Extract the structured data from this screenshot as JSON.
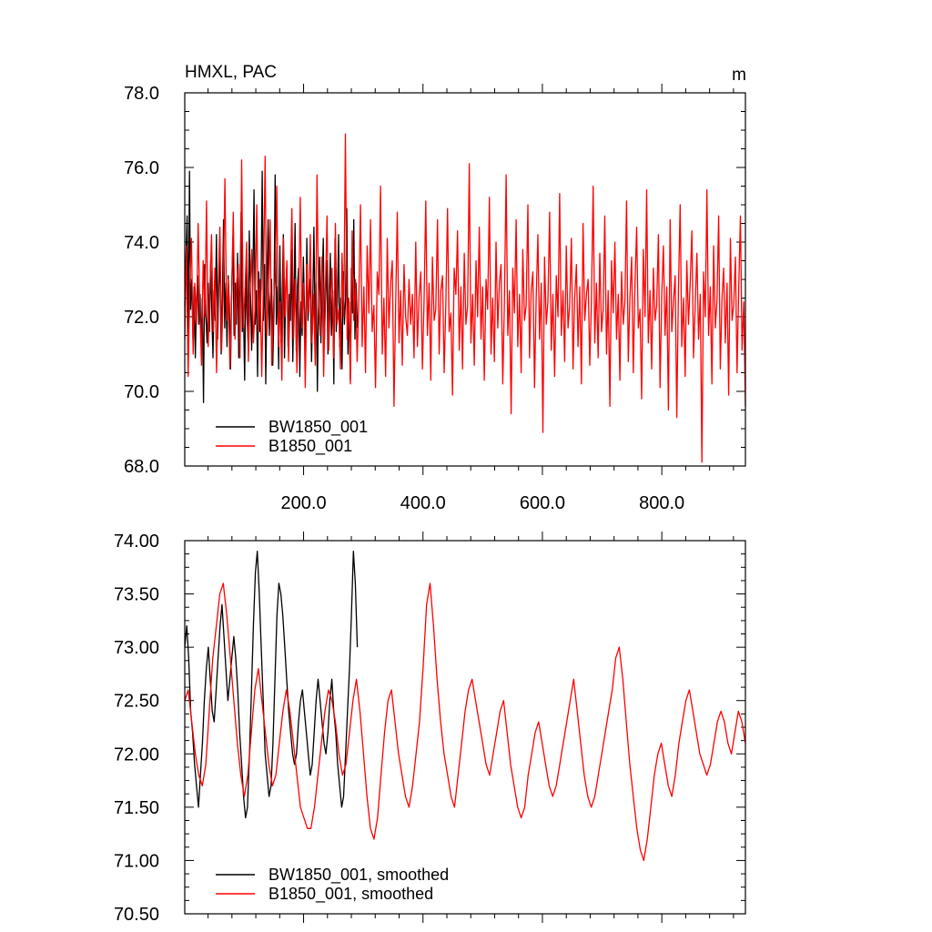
{
  "chart_data": [
    {
      "type": "line",
      "title": "HMXL, PAC",
      "units": "m",
      "xlim": [
        1,
        940
      ],
      "ylim": [
        68.0,
        78.0
      ],
      "xticks": [
        200,
        400,
        600,
        800
      ],
      "xtick_labels": [
        "200.0",
        "400.0",
        "600.0",
        "800.0"
      ],
      "yticks": [
        68,
        70,
        72,
        74,
        76,
        78
      ],
      "ytick_labels": [
        "68.0",
        "70.0",
        "72.0",
        "74.0",
        "76.0",
        "78.0"
      ],
      "legend_position": "bottom-left",
      "series": [
        {
          "name": "BW1850_001",
          "color": "#000000",
          "x_start": 1,
          "values": [
            72.3,
            73.6,
            74.7,
            71.5,
            75.9,
            72.2,
            73.0,
            71.4,
            72.8,
            70.9,
            72.4,
            73.1,
            71.8,
            72.6,
            71.2,
            72.5,
            69.7,
            73.4,
            72.0,
            71.3,
            72.9,
            71.6,
            73.5,
            72.1,
            70.9,
            72.7,
            71.9,
            74.2,
            71.4,
            72.8,
            73.6,
            71.0,
            72.4,
            74.6,
            71.7,
            72.9,
            71.2,
            73.1,
            72.3,
            70.6,
            72.8,
            74.1,
            71.5,
            72.9,
            71.8,
            73.7,
            70.9,
            72.5,
            74.8,
            71.6,
            72.2,
            70.3,
            73.3,
            72.0,
            71.3,
            74.3,
            72.6,
            71.1,
            72.9,
            75.4,
            71.8,
            72.7,
            70.4,
            73.2,
            71.6,
            72.8,
            75.9,
            71.9,
            73.4,
            70.2,
            72.7,
            74.6,
            71.5,
            72.4,
            73.0,
            70.7,
            72.2,
            75.8,
            71.8,
            72.8,
            70.6,
            73.9,
            71.3,
            72.5,
            74.2,
            70.9,
            72.7,
            73.4,
            71.2,
            72.6,
            71.9,
            73.8,
            70.8,
            72.3,
            74.5,
            71.1,
            72.8,
            73.3,
            70.4,
            72.4,
            71.5,
            73.6,
            72.2,
            70.7,
            74.1,
            71.9,
            72.6,
            73.0,
            70.8,
            72.3,
            74.4,
            71.7,
            72.9,
            70.0,
            72.5,
            73.6,
            71.3,
            72.8,
            74.1,
            71.4,
            72.6,
            73.5,
            71.0,
            72.2,
            73.7,
            71.5,
            72.7,
            70.2,
            74.1,
            71.6,
            72.4,
            74.2,
            71.2,
            72.5,
            70.6,
            73.2,
            71.8,
            72.5,
            74.9,
            71.0,
            72.4,
            70.3,
            73.3,
            72.1,
            74.6,
            71.4,
            72.9,
            71.7
          ]
        },
        {
          "name": "B1850_001",
          "color": "#ff0000",
          "x_start": 1,
          "values": [
            71.4,
            73.9,
            70.4,
            72.8,
            74.1,
            71.0,
            72.9,
            71.8,
            74.5,
            72.3,
            70.7,
            73.5,
            72.0,
            75.1,
            71.2,
            72.6,
            74.2,
            71.6,
            73.3,
            70.5,
            72.8,
            74.4,
            71.1,
            72.7,
            75.7,
            71.9,
            73.0,
            70.6,
            72.5,
            74.8,
            71.4,
            72.9,
            73.4,
            70.9,
            76.2,
            71.7,
            72.7,
            74.0,
            70.8,
            72.6,
            73.8,
            71.3,
            72.2,
            75.0,
            71.6,
            73.0,
            70.4,
            72.9,
            76.3,
            71.5,
            72.5,
            74.6,
            70.7,
            72.3,
            73.2,
            75.5,
            71.2,
            72.4,
            70.3,
            74.1,
            72.0,
            73.5,
            70.8,
            72.6,
            74.9,
            71.4,
            73.0,
            70.5,
            72.2,
            75.2,
            71.7,
            72.9,
            70.1,
            73.4,
            72.1,
            74.2,
            71.3,
            72.6,
            70.7,
            75.8,
            72.3,
            71.5,
            73.6,
            70.4,
            72.7,
            74.7,
            71.1,
            72.4,
            73.3,
            70.9,
            74.5,
            71.8,
            72.2,
            70.6,
            73.7,
            72.0,
            76.9,
            71.4,
            72.5,
            70.2,
            74.3,
            71.9,
            73.0,
            70.8,
            72.4,
            75.0,
            71.2,
            72.8,
            70.5,
            73.9,
            72.1,
            74.6,
            71.6,
            72.3,
            70.1,
            73.2,
            72.6,
            75.5,
            71.0,
            72.5,
            70.4,
            74.1,
            71.7,
            72.9,
            73.5,
            69.6,
            72.3,
            74.8,
            71.3,
            72.7,
            70.7,
            73.4,
            72.0,
            71.5,
            73.0,
            71.8,
            72.6,
            70.9,
            74.0,
            71.2,
            72.5,
            73.2,
            70.6,
            72.4,
            75.1,
            71.5,
            72.9,
            70.3,
            73.6,
            71.9,
            72.2,
            74.6,
            71.0,
            72.7,
            73.1,
            70.5,
            72.4,
            74.9,
            71.6,
            72.1,
            69.9,
            73.3,
            72.6,
            74.3,
            71.1,
            72.8,
            70.6,
            73.7,
            71.8,
            72.3,
            76.1,
            71.3,
            72.6,
            70.7,
            73.5,
            72.0,
            74.4,
            71.4,
            72.8,
            70.3,
            73.0,
            72.2,
            75.2,
            71.0,
            72.5,
            70.8,
            74.0,
            71.7,
            72.9,
            73.4,
            70.2,
            72.4,
            75.8,
            71.5,
            72.7,
            69.4,
            73.3,
            72.1,
            74.6,
            71.2,
            72.6,
            70.5,
            73.8,
            71.9,
            72.3,
            75.0,
            70.9,
            72.7,
            73.2,
            70.1,
            72.5,
            74.2,
            71.4,
            72.9,
            68.9,
            73.6,
            71.8,
            72.4,
            74.8,
            71.1,
            72.6,
            70.4,
            73.1,
            72.0,
            75.3,
            71.5,
            72.7,
            70.8,
            73.9,
            71.7,
            72.3,
            74.1,
            70.6,
            72.5,
            73.4,
            71.2,
            72.8,
            70.2,
            74.5,
            71.9,
            72.6,
            73.0,
            70.7,
            72.4,
            75.5,
            71.3,
            72.9,
            70.9,
            73.7,
            71.6,
            72.2,
            74.7,
            71.0,
            72.7,
            69.6,
            73.5,
            72.1,
            74.0,
            71.4,
            72.6,
            70.3,
            73.2,
            71.8,
            72.4,
            75.1,
            70.8,
            72.5,
            73.6,
            70.5,
            72.8,
            74.4,
            71.7,
            72.2,
            69.8,
            73.8,
            72.0,
            75.4,
            71.3,
            72.7,
            70.6,
            73.3,
            71.9,
            72.3,
            74.2,
            70.1,
            72.6,
            73.9,
            71.5,
            72.8,
            69.5,
            74.6,
            71.6,
            72.4,
            73.1,
            69.3,
            72.7,
            75.0,
            71.2,
            72.5,
            70.4,
            73.5,
            71.8,
            72.9,
            74.3,
            70.9,
            72.3,
            73.7,
            71.4,
            72.6,
            68.1,
            73.2,
            72.0,
            75.4,
            71.5,
            72.8,
            70.2,
            73.9,
            71.7,
            72.4,
            74.7,
            70.6,
            72.5,
            73.3,
            71.3,
            72.9,
            69.9,
            74.1,
            71.9,
            72.3,
            73.6,
            70.5,
            72.7,
            74.7,
            71.1,
            72.4,
            69.6
          ]
        }
      ]
    },
    {
      "type": "line",
      "title": "",
      "xlim": [
        1,
        940
      ],
      "ylim": [
        70.5,
        74.0
      ],
      "xticks": [
        200,
        400,
        600,
        800
      ],
      "xtick_labels": [],
      "yticks": [
        70.5,
        71.0,
        71.5,
        72.0,
        72.5,
        73.0,
        73.5,
        74.0
      ],
      "ytick_labels": [
        "70.50",
        "71.00",
        "71.50",
        "72.00",
        "72.50",
        "73.00",
        "73.50",
        "74.00"
      ],
      "legend_position": "bottom-left",
      "series": [
        {
          "name": "BW1850_001, smoothed",
          "color": "#000000",
          "x_start": 1,
          "values": [
            73.0,
            73.2,
            72.9,
            72.4,
            72.2,
            71.9,
            71.7,
            71.5,
            71.8,
            72.1,
            72.5,
            72.8,
            73.0,
            72.7,
            72.4,
            72.3,
            72.6,
            72.9,
            73.2,
            73.4,
            73.1,
            72.8,
            72.5,
            72.7,
            72.9,
            73.1,
            72.9,
            72.6,
            72.2,
            71.9,
            71.6,
            71.4,
            71.5,
            72.0,
            72.6,
            73.2,
            73.7,
            73.9,
            73.5,
            73.0,
            72.5,
            72.0,
            71.8,
            71.6,
            71.7,
            72.1,
            72.7,
            73.3,
            73.6,
            73.5,
            73.3,
            73.0,
            72.7,
            72.4,
            72.2,
            72.0,
            71.9,
            72.0,
            72.3,
            72.5,
            72.6,
            72.4,
            72.2,
            72.0,
            71.8,
            71.9,
            72.2,
            72.5,
            72.7,
            72.5,
            72.3,
            72.1,
            72.0,
            72.2,
            72.5,
            72.7,
            72.4,
            72.2,
            71.9,
            71.7,
            71.5,
            71.6,
            72.0,
            72.4,
            72.8,
            73.3,
            73.9,
            73.6,
            73.0
          ]
        },
        {
          "name": "B1850_001, smoothed",
          "color": "#ff0000",
          "x_start": 1,
          "values": [
            72.5,
            72.6,
            72.3,
            72.0,
            71.8,
            71.7,
            71.9,
            72.4,
            72.9,
            73.2,
            73.5,
            73.6,
            73.3,
            72.9,
            72.5,
            72.1,
            71.8,
            71.6,
            71.8,
            72.2,
            72.6,
            72.8,
            72.5,
            72.2,
            71.9,
            71.7,
            71.8,
            72.1,
            72.4,
            72.6,
            72.4,
            72.1,
            71.8,
            71.5,
            71.4,
            71.3,
            71.3,
            71.5,
            71.8,
            72.1,
            72.4,
            72.6,
            72.5,
            72.3,
            72.0,
            71.8,
            71.9,
            72.2,
            72.5,
            72.7,
            72.4,
            72.0,
            71.6,
            71.3,
            71.2,
            71.4,
            71.8,
            72.2,
            72.5,
            72.6,
            72.3,
            72.0,
            71.8,
            71.6,
            71.5,
            71.7,
            72.0,
            72.3,
            72.8,
            73.4,
            73.6,
            73.2,
            72.7,
            72.3,
            72.0,
            71.8,
            71.6,
            71.5,
            71.8,
            72.1,
            72.4,
            72.6,
            72.7,
            72.5,
            72.3,
            72.1,
            71.9,
            71.8,
            72.0,
            72.2,
            72.4,
            72.5,
            72.2,
            71.9,
            71.7,
            71.5,
            71.4,
            71.5,
            71.8,
            72.0,
            72.2,
            72.3,
            72.1,
            71.9,
            71.7,
            71.6,
            71.7,
            71.9,
            72.1,
            72.3,
            72.5,
            72.7,
            72.4,
            72.1,
            71.8,
            71.6,
            71.5,
            71.6,
            71.8,
            72.0,
            72.2,
            72.4,
            72.6,
            72.9,
            73.0,
            72.7,
            72.3,
            71.9,
            71.6,
            71.3,
            71.1,
            71.0,
            71.2,
            71.5,
            71.8,
            72.0,
            72.1,
            71.9,
            71.7,
            71.6,
            71.8,
            72.1,
            72.3,
            72.5,
            72.6,
            72.4,
            72.2,
            72.0,
            71.9,
            71.8,
            71.9,
            72.1,
            72.3,
            72.4,
            72.3,
            72.1,
            72.0,
            72.2,
            72.4,
            72.3,
            72.1
          ]
        }
      ]
    }
  ]
}
